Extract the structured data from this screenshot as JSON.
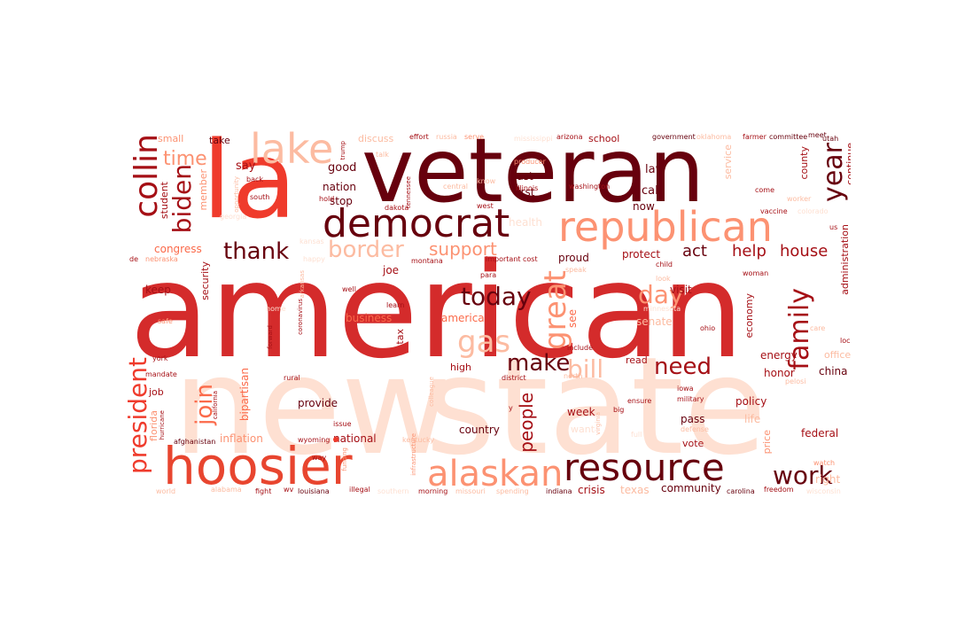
{
  "palette": {
    "darkest": "#67000d",
    "dark": "#a50f15",
    "red": "#cb181d",
    "bright": "#ef3b2c",
    "mid": "#fb6a4a",
    "salmon": "#fc9272",
    "light": "#fcbba1",
    "pale": "#fee0d2",
    "palest": "#fff5f0"
  },
  "words": [
    {
      "id": "new",
      "text": "new"
    },
    {
      "id": "state",
      "text": "state"
    },
    {
      "id": "american",
      "text": "american"
    },
    {
      "id": "veteran",
      "text": "veteran"
    },
    {
      "id": "la",
      "text": "la"
    },
    {
      "id": "republican",
      "text": "republican"
    },
    {
      "id": "democrat",
      "text": "democrat"
    },
    {
      "id": "hoosier",
      "text": "hoosier"
    },
    {
      "id": "resource",
      "text": "resource"
    },
    {
      "id": "alaskan",
      "text": "alaskan"
    },
    {
      "id": "lake",
      "text": "lake"
    },
    {
      "id": "collin",
      "text": "collin"
    },
    {
      "id": "border",
      "text": "border"
    },
    {
      "id": "thank",
      "text": "thank"
    },
    {
      "id": "biden",
      "text": "biden"
    },
    {
      "id": "time",
      "text": "time"
    },
    {
      "id": "today",
      "text": "today"
    },
    {
      "id": "great",
      "text": "great"
    },
    {
      "id": "day",
      "text": "day"
    },
    {
      "id": "gas",
      "text": "gas"
    },
    {
      "id": "bill",
      "text": "bill"
    },
    {
      "id": "make",
      "text": "make"
    },
    {
      "id": "need",
      "text": "need"
    },
    {
      "id": "family",
      "text": "family"
    },
    {
      "id": "year",
      "text": "year"
    },
    {
      "id": "president",
      "text": "president"
    },
    {
      "id": "join",
      "text": "join"
    },
    {
      "id": "work",
      "text": "work"
    },
    {
      "id": "people",
      "text": "people"
    },
    {
      "id": "support",
      "text": "support"
    },
    {
      "id": "help",
      "text": "help"
    },
    {
      "id": "house",
      "text": "house"
    },
    {
      "id": "act",
      "text": "act"
    },
    {
      "id": "congress",
      "text": "congress"
    },
    {
      "id": "say",
      "text": "say"
    },
    {
      "id": "good",
      "text": "good"
    },
    {
      "id": "nation",
      "text": "nation"
    },
    {
      "id": "stop",
      "text": "stop"
    },
    {
      "id": "last",
      "text": "last"
    },
    {
      "id": "first",
      "text": "first"
    },
    {
      "id": "law",
      "text": "law"
    },
    {
      "id": "call",
      "text": "call"
    },
    {
      "id": "now",
      "text": "now"
    },
    {
      "id": "proud",
      "text": "proud"
    },
    {
      "id": "protect",
      "text": "protect"
    },
    {
      "id": "visit",
      "text": "visit"
    },
    {
      "id": "joe",
      "text": "joe"
    },
    {
      "id": "keep",
      "text": "keep"
    },
    {
      "id": "security",
      "text": "security"
    },
    {
      "id": "business",
      "text": "business"
    },
    {
      "id": "america",
      "text": "america"
    },
    {
      "id": "see",
      "text": "see"
    },
    {
      "id": "senate",
      "text": "senate"
    },
    {
      "id": "economy",
      "text": "economy"
    },
    {
      "id": "administration",
      "text": "administration"
    },
    {
      "id": "continue",
      "text": "continue"
    },
    {
      "id": "county",
      "text": "county"
    },
    {
      "id": "service",
      "text": "service"
    },
    {
      "id": "small",
      "text": "small"
    },
    {
      "id": "take",
      "text": "take"
    },
    {
      "id": "discuss",
      "text": "discuss"
    },
    {
      "id": "effort",
      "text": "effort"
    },
    {
      "id": "russia",
      "text": "russia"
    },
    {
      "id": "serve",
      "text": "serve"
    },
    {
      "id": "arizona",
      "text": "arizona"
    },
    {
      "id": "school",
      "text": "school"
    },
    {
      "id": "government",
      "text": "government"
    },
    {
      "id": "oklahoma",
      "text": "oklahoma"
    },
    {
      "id": "farmer",
      "text": "farmer"
    },
    {
      "id": "committee",
      "text": "committee"
    },
    {
      "id": "meet",
      "text": "meet"
    },
    {
      "id": "utah",
      "text": "utah"
    },
    {
      "id": "trump",
      "text": "trump"
    },
    {
      "id": "producer",
      "text": "producer"
    },
    {
      "id": "washington",
      "text": "washington"
    },
    {
      "id": "illinois",
      "text": "illinois"
    },
    {
      "id": "tennessee",
      "text": "tennessee"
    },
    {
      "id": "central",
      "text": "central"
    },
    {
      "id": "dakota",
      "text": "dakota"
    },
    {
      "id": "west",
      "text": "west"
    },
    {
      "id": "member",
      "text": "member"
    },
    {
      "id": "student",
      "text": "student"
    },
    {
      "id": "opportunity",
      "text": "opportunity"
    },
    {
      "id": "south",
      "text": "south"
    },
    {
      "id": "back",
      "text": "back"
    },
    {
      "id": "hold",
      "text": "hold"
    },
    {
      "id": "talk",
      "text": "talk"
    },
    {
      "id": "health",
      "text": "health"
    },
    {
      "id": "worker",
      "text": "worker"
    },
    {
      "id": "vaccine",
      "text": "vaccine"
    },
    {
      "id": "come",
      "text": "come"
    },
    {
      "id": "georgia",
      "text": "georgia"
    },
    {
      "id": "us",
      "text": "us"
    },
    {
      "id": "de",
      "text": "de"
    },
    {
      "id": "nebraska",
      "text": "nebraska"
    },
    {
      "id": "kansas",
      "text": "kansas"
    },
    {
      "id": "happy",
      "text": "happy"
    },
    {
      "id": "montana",
      "text": "montana"
    },
    {
      "id": "important",
      "text": "important"
    },
    {
      "id": "cost",
      "text": "cost"
    },
    {
      "id": "speak",
      "text": "speak"
    },
    {
      "id": "child",
      "text": "child"
    },
    {
      "id": "look",
      "text": "look"
    },
    {
      "id": "woman",
      "text": "woman"
    },
    {
      "id": "well",
      "text": "well"
    },
    {
      "id": "arkansas",
      "text": "arkansas"
    },
    {
      "id": "learn",
      "text": "learn"
    },
    {
      "id": "para",
      "text": "para"
    },
    {
      "id": "coronavirus",
      "text": "coronavirus"
    },
    {
      "id": "forward",
      "text": "forward"
    },
    {
      "id": "safe",
      "text": "safe"
    },
    {
      "id": "home",
      "text": "home"
    },
    {
      "id": "tax",
      "text": "tax"
    },
    {
      "id": "include",
      "text": "include"
    },
    {
      "id": "ohio",
      "text": "ohio"
    },
    {
      "id": "care",
      "text": "care"
    },
    {
      "id": "local",
      "text": "local"
    },
    {
      "id": "office",
      "text": "office"
    },
    {
      "id": "energy",
      "text": "energy"
    },
    {
      "id": "honor",
      "text": "honor"
    },
    {
      "id": "china",
      "text": "china"
    },
    {
      "id": "pelosi",
      "text": "pelosi"
    },
    {
      "id": "read",
      "text": "read"
    },
    {
      "id": "iowa",
      "text": "iowa"
    },
    {
      "id": "high",
      "text": "high"
    },
    {
      "id": "district",
      "text": "district"
    },
    {
      "id": "colleague",
      "text": "colleague"
    },
    {
      "id": "york",
      "text": "york"
    },
    {
      "id": "mandate",
      "text": "mandate"
    },
    {
      "id": "job",
      "text": "job"
    },
    {
      "id": "rural",
      "text": "rural"
    },
    {
      "id": "bipartisan",
      "text": "bipartisan"
    },
    {
      "id": "provide",
      "text": "provide"
    },
    {
      "id": "california",
      "text": "california"
    },
    {
      "id": "hurricane",
      "text": "hurricane"
    },
    {
      "id": "florida",
      "text": "florida"
    },
    {
      "id": "afghanistan",
      "text": "afghanistan"
    },
    {
      "id": "inflation",
      "text": "inflation"
    },
    {
      "id": "wyoming",
      "text": "wyoming"
    },
    {
      "id": "national",
      "text": "national"
    },
    {
      "id": "kentucky",
      "text": "kentucky"
    },
    {
      "id": "issue",
      "text": "issue"
    },
    {
      "id": "country",
      "text": "country"
    },
    {
      "id": "week",
      "text": "week"
    },
    {
      "id": "north",
      "text": "north"
    },
    {
      "id": "ensure",
      "text": "ensure"
    },
    {
      "id": "big",
      "text": "big"
    },
    {
      "id": "military",
      "text": "military"
    },
    {
      "id": "policy",
      "text": "policy"
    },
    {
      "id": "pass",
      "text": "pass"
    },
    {
      "id": "life",
      "text": "life"
    },
    {
      "id": "want",
      "text": "want"
    },
    {
      "id": "virginia",
      "text": "virginia"
    },
    {
      "id": "full",
      "text": "full"
    },
    {
      "id": "defense",
      "text": "defense"
    },
    {
      "id": "vote",
      "text": "vote"
    },
    {
      "id": "price",
      "text": "price"
    },
    {
      "id": "federal",
      "text": "federal"
    },
    {
      "id": "watch",
      "text": "watch"
    },
    {
      "id": "right",
      "text": "right"
    },
    {
      "id": "way",
      "text": "way"
    },
    {
      "id": "funding",
      "text": "funding"
    },
    {
      "id": "infrastructure",
      "text": "infrastructure"
    },
    {
      "id": "world",
      "text": "world"
    },
    {
      "id": "alabama",
      "text": "alabama"
    },
    {
      "id": "fight",
      "text": "fight"
    },
    {
      "id": "wv",
      "text": "wv"
    },
    {
      "id": "louisiana",
      "text": "louisiana"
    },
    {
      "id": "illegal",
      "text": "illegal"
    },
    {
      "id": "southern",
      "text": "southern"
    },
    {
      "id": "morning",
      "text": "morning"
    },
    {
      "id": "missouri",
      "text": "missouri"
    },
    {
      "id": "spending",
      "text": "spending"
    },
    {
      "id": "indiana",
      "text": "indiana"
    },
    {
      "id": "crisis",
      "text": "crisis"
    },
    {
      "id": "texas",
      "text": "texas"
    },
    {
      "id": "community",
      "text": "community"
    },
    {
      "id": "carolina",
      "text": "carolina"
    },
    {
      "id": "freedom",
      "text": "freedom"
    },
    {
      "id": "wisconsin",
      "text": "wisconsin"
    },
    {
      "id": "y",
      "text": "y"
    },
    {
      "id": "know",
      "text": "know"
    },
    {
      "id": "mississippi",
      "text": "mississippi"
    },
    {
      "id": "colorado",
      "text": "colorado"
    },
    {
      "id": "minnesota",
      "text": "minnesota"
    }
  ]
}
